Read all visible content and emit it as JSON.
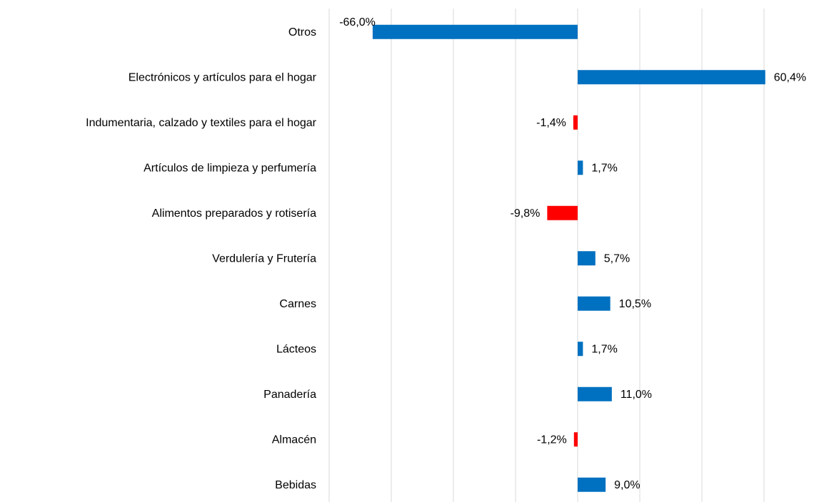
{
  "chart_data": {
    "type": "hbar",
    "categories": [
      "Otros",
      "Electrónicos y artículos para el hogar",
      "Indumentaria, calzado y textiles para el hogar",
      "Artículos de limpieza y perfumería",
      "Alimentos preparados y rotisería",
      "Verdulería y Frutería",
      "Carnes",
      "Lácteos",
      "Panadería",
      "Almacén",
      "Bebidas"
    ],
    "values": [
      -66.0,
      60.4,
      -1.4,
      1.7,
      -9.8,
      5.7,
      10.5,
      1.7,
      11.0,
      -1.2,
      9.0
    ],
    "value_labels": [
      "-66,0%",
      "60,4%",
      "-1,4%",
      "1,7%",
      "-9,8%",
      "5,7%",
      "10,5%",
      "1,7%",
      "11,0%",
      "-1,2%",
      "9,0%"
    ],
    "colors": [
      "#0070c0",
      "#0070c0",
      "#ff0000",
      "#0070c0",
      "#ff0000",
      "#0070c0",
      "#0070c0",
      "#0070c0",
      "#0070c0",
      "#ff0000",
      "#0070c0"
    ],
    "xlim": [
      -80,
      60
    ],
    "xticks": [
      -80,
      -60,
      -40,
      -20,
      0,
      20,
      40,
      60
    ],
    "grid": true
  }
}
